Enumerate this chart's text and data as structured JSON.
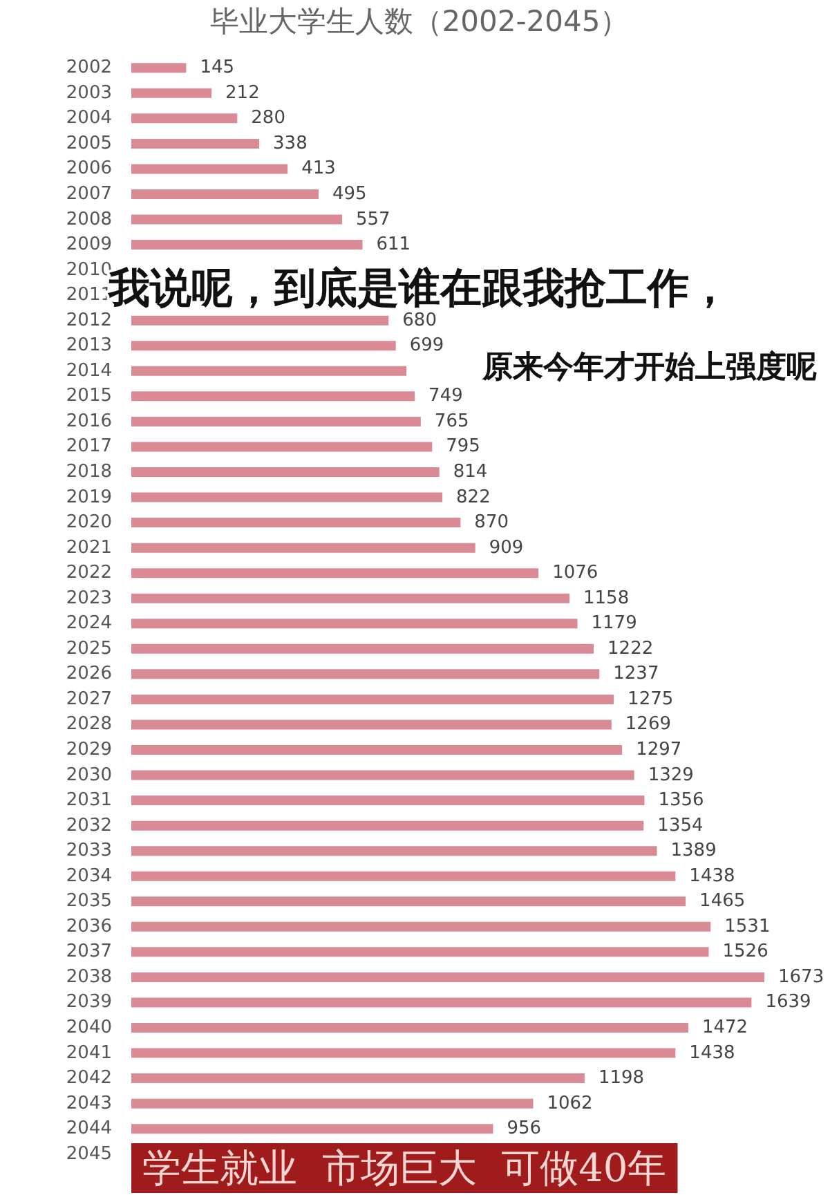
{
  "chart_data": {
    "type": "bar",
    "orientation": "horizontal",
    "title": "毕业大学生人数（2002-2045）",
    "categories": [
      "2002",
      "2003",
      "2004",
      "2005",
      "2006",
      "2007",
      "2008",
      "2009",
      "2010",
      "2011",
      "2012",
      "2013",
      "2014",
      "2015",
      "2016",
      "2017",
      "2018",
      "2019",
      "2020",
      "2021",
      "2022",
      "2023",
      "2024",
      "2025",
      "2026",
      "2027",
      "2028",
      "2029",
      "2030",
      "2031",
      "2032",
      "2033",
      "2034",
      "2035",
      "2036",
      "2037",
      "2038",
      "2039",
      "2040",
      "2041",
      "2042",
      "2043",
      "2044",
      "2045"
    ],
    "values": [
      145,
      212,
      280,
      338,
      413,
      495,
      557,
      611,
      null,
      null,
      680,
      699,
      727,
      749,
      765,
      795,
      814,
      822,
      870,
      909,
      1076,
      1158,
      1179,
      1222,
      1237,
      1275,
      1269,
      1297,
      1329,
      1356,
      1354,
      1389,
      1438,
      1465,
      1531,
      1526,
      1673,
      1639,
      1472,
      1438,
      1198,
      1062,
      956,
      null
    ],
    "value_labels": [
      "145",
      "212",
      "280",
      "338",
      "413",
      "495",
      "557",
      "611",
      null,
      null,
      "680",
      "699",
      null,
      "749",
      "765",
      "795",
      "814",
      "822",
      "870",
      "909",
      "1076",
      "1158",
      "1179",
      "1222",
      "1237",
      "1275",
      "1269",
      "1297",
      "1329",
      "1356",
      "1354",
      "1389",
      "1438",
      "1465",
      "1531",
      "1526",
      "1673",
      "1639",
      "1472",
      "1438",
      "1198",
      "1062",
      "956",
      null
    ],
    "color": "#d98a94",
    "annotations": [
      "我说呢，到底是谁在跟我抢工作，",
      "原来今年才开始上强度呢",
      "学生就业  市场巨大  可做40年"
    ]
  }
}
